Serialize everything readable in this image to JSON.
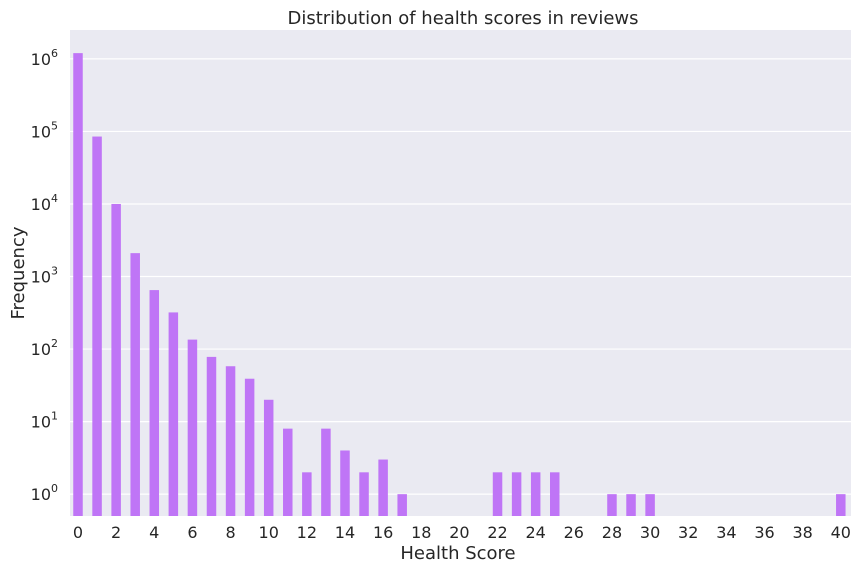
{
  "chart_data": {
    "type": "bar",
    "title": "Distribution of health scores in reviews",
    "xlabel": "Health Score",
    "ylabel": "Frequency",
    "y_scale": "log",
    "ylim": [
      0.5,
      2500000
    ],
    "grid": true,
    "legend": "none",
    "x_ticks": [
      "0",
      "2",
      "4",
      "6",
      "8",
      "10",
      "12",
      "14",
      "16",
      "18",
      "20",
      "22",
      "24",
      "26",
      "28",
      "30",
      "32",
      "34",
      "36",
      "38",
      "40"
    ],
    "y_ticks": [
      {
        "value": 1,
        "base": "10",
        "exp": "0"
      },
      {
        "value": 10,
        "base": "10",
        "exp": "1"
      },
      {
        "value": 100,
        "base": "10",
        "exp": "2"
      },
      {
        "value": 1000,
        "base": "10",
        "exp": "3"
      },
      {
        "value": 10000,
        "base": "10",
        "exp": "4"
      },
      {
        "value": 100000,
        "base": "10",
        "exp": "5"
      },
      {
        "value": 1000000,
        "base": "10",
        "exp": "6"
      }
    ],
    "categories": [
      0,
      1,
      2,
      3,
      4,
      5,
      6,
      7,
      8,
      9,
      10,
      11,
      12,
      13,
      14,
      15,
      16,
      17,
      18,
      19,
      20,
      21,
      22,
      23,
      24,
      25,
      26,
      27,
      28,
      29,
      30,
      31,
      32,
      33,
      34,
      35,
      36,
      37,
      38,
      39,
      40
    ],
    "values": [
      1200000,
      85000,
      10000,
      2100,
      650,
      320,
      135,
      78,
      58,
      39,
      20,
      8,
      2,
      8,
      4,
      2,
      3,
      1,
      0,
      0,
      0,
      0,
      2,
      2,
      2,
      2,
      0,
      0,
      1,
      1,
      1,
      0,
      0,
      0,
      0,
      0,
      0,
      0,
      0,
      0,
      1
    ]
  },
  "colors": {
    "plot_background": "#eaeaf2",
    "grid": "#ffffff",
    "bar": "#bf75f6",
    "text": "#262626"
  }
}
